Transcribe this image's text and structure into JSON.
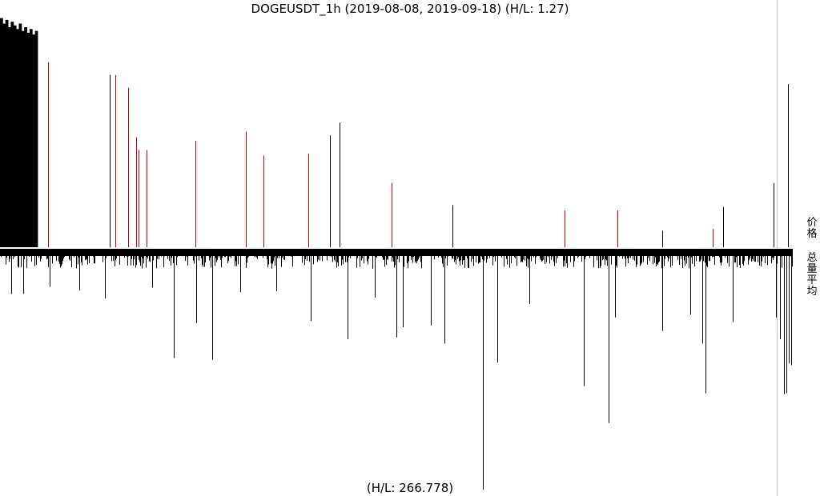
{
  "title": "DOGEUSDT_1h (2019-08-08, 2019-09-18) (H/L: 1.27)",
  "bottom_label": "(H/L: 266.778)",
  "side_labels": {
    "price": "价格",
    "volume": "总量平均"
  },
  "colors": {
    "background": "#ffffff",
    "bar": "#000000",
    "highlight": "#cc0000",
    "divider": "#c8c8c8"
  },
  "chart_data": [
    {
      "type": "bar",
      "panel": "price",
      "title": "DOGEUSDT_1h (2019-08-08, 2019-09-18) (H/L: 1.27)",
      "axis_label": "价格",
      "x_range": [
        0,
        990
      ],
      "ylim": [
        0,
        1.27
      ],
      "dense_block": {
        "x_start": 0,
        "x_end": 47,
        "levels": [
          1.25,
          1.22,
          1.24,
          1.2,
          1.23,
          1.21,
          1.19,
          1.22,
          1.18,
          1.2,
          1.17,
          1.19,
          1.16,
          1.18
        ]
      },
      "spikes": [
        {
          "x": 60,
          "value": 1.01,
          "color": "red"
        },
        {
          "x": 137,
          "value": 0.94,
          "color": "black"
        },
        {
          "x": 144,
          "value": 0.94,
          "color": "red"
        },
        {
          "x": 160,
          "value": 0.87,
          "color": "red"
        },
        {
          "x": 170,
          "value": 0.6,
          "color": "red"
        },
        {
          "x": 173,
          "value": 0.53,
          "color": "red"
        },
        {
          "x": 183,
          "value": 0.53,
          "color": "red"
        },
        {
          "x": 244,
          "value": 0.58,
          "color": "red"
        },
        {
          "x": 307,
          "value": 0.63,
          "color": "red"
        },
        {
          "x": 329,
          "value": 0.5,
          "color": "red"
        },
        {
          "x": 385,
          "value": 0.51,
          "color": "red"
        },
        {
          "x": 412,
          "value": 0.61,
          "color": "black"
        },
        {
          "x": 424,
          "value": 0.68,
          "color": "black"
        },
        {
          "x": 489,
          "value": 0.35,
          "color": "red"
        },
        {
          "x": 565,
          "value": 0.23,
          "color": "black"
        },
        {
          "x": 705,
          "value": 0.2,
          "color": "red"
        },
        {
          "x": 771,
          "value": 0.2,
          "color": "red"
        },
        {
          "x": 827,
          "value": 0.09,
          "color": "black"
        },
        {
          "x": 890,
          "value": 0.1,
          "color": "red"
        },
        {
          "x": 903,
          "value": 0.22,
          "color": "black"
        },
        {
          "x": 966,
          "value": 0.35,
          "color": "black"
        },
        {
          "x": 984,
          "value": 0.89,
          "color": "black"
        }
      ]
    },
    {
      "type": "bar",
      "panel": "volume",
      "title": "(H/L: 266.778)",
      "axis_label": "总量平均",
      "x_range": [
        0,
        990
      ],
      "ylim": [
        0,
        266.778
      ],
      "baseline_band": 8,
      "base_level_range": [
        4,
        22
      ],
      "spikes": [
        {
          "x": 14,
          "value": 50
        },
        {
          "x": 29,
          "value": 50
        },
        {
          "x": 62,
          "value": 42
        },
        {
          "x": 99,
          "value": 46
        },
        {
          "x": 131,
          "value": 55
        },
        {
          "x": 190,
          "value": 43
        },
        {
          "x": 217,
          "value": 121
        },
        {
          "x": 245,
          "value": 82
        },
        {
          "x": 265,
          "value": 123
        },
        {
          "x": 300,
          "value": 48
        },
        {
          "x": 345,
          "value": 47
        },
        {
          "x": 388,
          "value": 80
        },
        {
          "x": 434,
          "value": 100
        },
        {
          "x": 468,
          "value": 54
        },
        {
          "x": 495,
          "value": 98
        },
        {
          "x": 503,
          "value": 87
        },
        {
          "x": 538,
          "value": 85
        },
        {
          "x": 555,
          "value": 105
        },
        {
          "x": 603,
          "value": 267
        },
        {
          "x": 621,
          "value": 126
        },
        {
          "x": 661,
          "value": 61
        },
        {
          "x": 729,
          "value": 152
        },
        {
          "x": 760,
          "value": 193
        },
        {
          "x": 768,
          "value": 76
        },
        {
          "x": 827,
          "value": 91
        },
        {
          "x": 862,
          "value": 73
        },
        {
          "x": 877,
          "value": 105
        },
        {
          "x": 881,
          "value": 160
        },
        {
          "x": 915,
          "value": 81
        },
        {
          "x": 969,
          "value": 76
        },
        {
          "x": 974,
          "value": 100
        },
        {
          "x": 979,
          "value": 161
        },
        {
          "x": 982,
          "value": 160
        },
        {
          "x": 985,
          "value": 127
        },
        {
          "x": 988,
          "value": 129
        }
      ]
    }
  ]
}
